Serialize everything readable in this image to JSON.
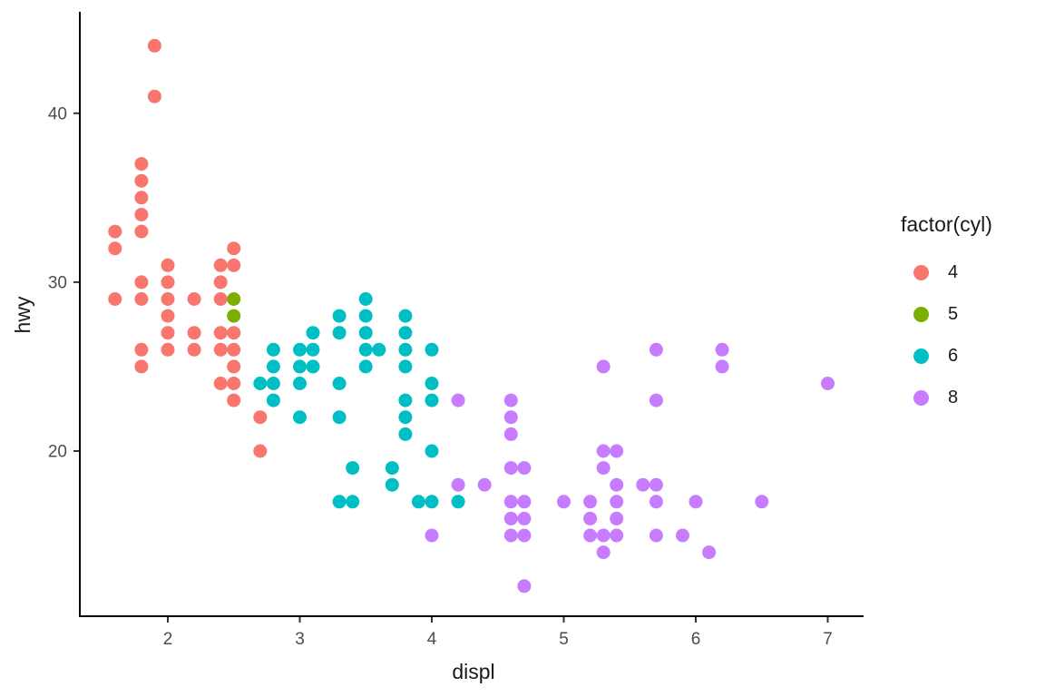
{
  "chart_data": {
    "type": "scatter",
    "title": "",
    "xlabel": "displ",
    "ylabel": "hwy",
    "legend_title": "factor(cyl)",
    "legend_position": "right",
    "grid": false,
    "background": "#ffffff",
    "axis_line_color": "#000000",
    "tick_label_color": "#4d4d4d",
    "xlim": [
      1.33,
      7.27
    ],
    "ylim": [
      10.4,
      45.6
    ],
    "x_ticks": [
      2,
      3,
      4,
      5,
      6,
      7
    ],
    "y_ticks": [
      20,
      30,
      40
    ],
    "series": [
      {
        "name": "4",
        "color": "#F8766D",
        "points": [
          [
            1.6,
            33
          ],
          [
            1.6,
            32
          ],
          [
            1.6,
            29
          ],
          [
            1.8,
            37
          ],
          [
            1.8,
            36
          ],
          [
            1.8,
            35
          ],
          [
            1.8,
            34
          ],
          [
            1.8,
            33
          ],
          [
            1.8,
            30
          ],
          [
            1.8,
            29
          ],
          [
            1.8,
            26
          ],
          [
            1.8,
            25
          ],
          [
            1.9,
            44
          ],
          [
            1.9,
            41
          ],
          [
            2.0,
            31
          ],
          [
            2.0,
            30
          ],
          [
            2.0,
            29
          ],
          [
            2.0,
            28
          ],
          [
            2.0,
            27
          ],
          [
            2.0,
            26
          ],
          [
            2.2,
            29
          ],
          [
            2.2,
            27
          ],
          [
            2.2,
            26
          ],
          [
            2.4,
            31
          ],
          [
            2.4,
            30
          ],
          [
            2.4,
            29
          ],
          [
            2.4,
            27
          ],
          [
            2.4,
            26
          ],
          [
            2.4,
            24
          ],
          [
            2.5,
            32
          ],
          [
            2.5,
            31
          ],
          [
            2.5,
            27
          ],
          [
            2.5,
            26
          ],
          [
            2.5,
            25
          ],
          [
            2.5,
            24
          ],
          [
            2.5,
            23
          ],
          [
            2.7,
            22
          ],
          [
            2.7,
            20
          ]
        ]
      },
      {
        "name": "5",
        "color": "#7CAE00",
        "points": [
          [
            2.5,
            29
          ],
          [
            2.5,
            28
          ]
        ]
      },
      {
        "name": "6",
        "color": "#00BFC4",
        "points": [
          [
            2.7,
            24
          ],
          [
            2.8,
            26
          ],
          [
            2.8,
            25
          ],
          [
            2.8,
            24
          ],
          [
            2.8,
            23
          ],
          [
            3.0,
            26
          ],
          [
            3.0,
            25
          ],
          [
            3.0,
            24
          ],
          [
            3.0,
            22
          ],
          [
            3.1,
            27
          ],
          [
            3.1,
            26
          ],
          [
            3.1,
            25
          ],
          [
            3.3,
            28
          ],
          [
            3.3,
            27
          ],
          [
            3.3,
            24
          ],
          [
            3.3,
            22
          ],
          [
            3.3,
            17
          ],
          [
            3.4,
            19
          ],
          [
            3.4,
            17
          ],
          [
            3.5,
            29
          ],
          [
            3.5,
            28
          ],
          [
            3.5,
            27
          ],
          [
            3.5,
            26
          ],
          [
            3.5,
            25
          ],
          [
            3.6,
            26
          ],
          [
            3.7,
            19
          ],
          [
            3.7,
            18
          ],
          [
            3.8,
            28
          ],
          [
            3.8,
            27
          ],
          [
            3.8,
            26
          ],
          [
            3.8,
            25
          ],
          [
            3.8,
            23
          ],
          [
            3.8,
            22
          ],
          [
            3.8,
            21
          ],
          [
            3.9,
            17
          ],
          [
            4.0,
            26
          ],
          [
            4.0,
            24
          ],
          [
            4.0,
            23
          ],
          [
            4.0,
            20
          ],
          [
            4.0,
            17
          ],
          [
            4.2,
            17
          ]
        ]
      },
      {
        "name": "8",
        "color": "#C77CFF",
        "points": [
          [
            4.0,
            15
          ],
          [
            4.2,
            23
          ],
          [
            4.2,
            18
          ],
          [
            4.4,
            18
          ],
          [
            4.6,
            23
          ],
          [
            4.6,
            22
          ],
          [
            4.6,
            21
          ],
          [
            4.6,
            19
          ],
          [
            4.6,
            17
          ],
          [
            4.6,
            16
          ],
          [
            4.6,
            15
          ],
          [
            4.7,
            19
          ],
          [
            4.7,
            17
          ],
          [
            4.7,
            16
          ],
          [
            4.7,
            15
          ],
          [
            4.7,
            12
          ],
          [
            5.0,
            17
          ],
          [
            5.2,
            17
          ],
          [
            5.2,
            16
          ],
          [
            5.2,
            15
          ],
          [
            5.3,
            25
          ],
          [
            5.3,
            20
          ],
          [
            5.3,
            19
          ],
          [
            5.3,
            15
          ],
          [
            5.3,
            14
          ],
          [
            5.4,
            20
          ],
          [
            5.4,
            18
          ],
          [
            5.4,
            17
          ],
          [
            5.4,
            16
          ],
          [
            5.4,
            15
          ],
          [
            5.6,
            18
          ],
          [
            5.7,
            26
          ],
          [
            5.7,
            23
          ],
          [
            5.7,
            18
          ],
          [
            5.7,
            17
          ],
          [
            5.7,
            15
          ],
          [
            5.9,
            15
          ],
          [
            6.0,
            17
          ],
          [
            6.1,
            14
          ],
          [
            6.2,
            26
          ],
          [
            6.2,
            25
          ],
          [
            6.5,
            17
          ],
          [
            7.0,
            24
          ]
        ]
      }
    ]
  }
}
